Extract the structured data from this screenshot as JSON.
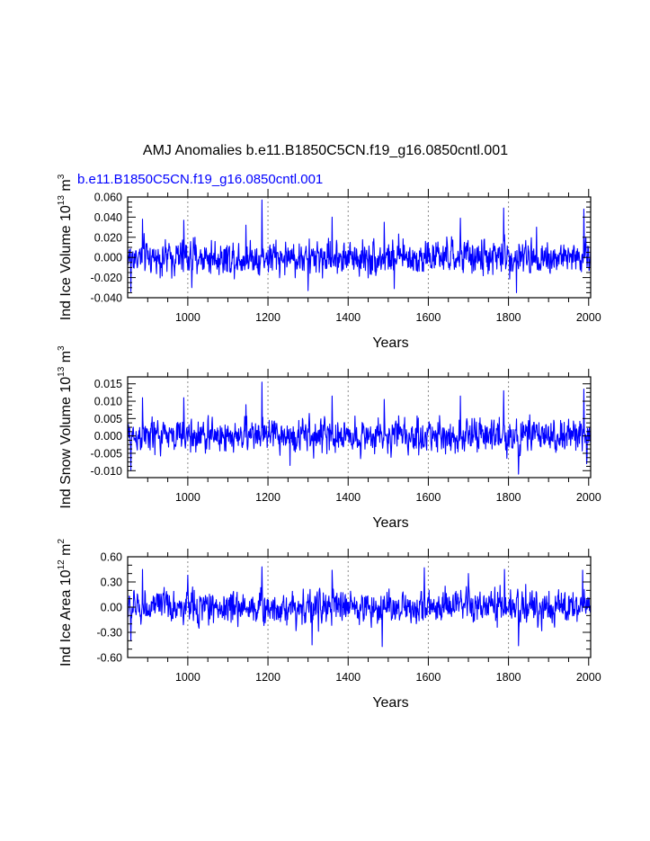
{
  "figure": {
    "title": "AMJ Anomalies b.e11.B1850C5CN.f19_g16.0850cntl.001",
    "case_label": "b.e11.B1850C5CN.f19_g16.0850cntl.001",
    "line_color": "#0000ff",
    "grid_color": "#888888"
  },
  "chart_data": [
    {
      "type": "line",
      "series_name": "b.e11.B1850C5CN.f19_g16.0850cntl.001",
      "xlabel": "Years",
      "ylabel_main": "Ind Ice Volume 10",
      "ylabel_exp": "13",
      "ylabel_unit": " m",
      "ylabel_unit_exp": "3",
      "xlim": [
        850,
        2005
      ],
      "ylim": [
        -0.04,
        0.06
      ],
      "xticks": [
        1000,
        1200,
        1400,
        1600,
        1800,
        2000
      ],
      "xtick_labels": [
        "1000",
        "1200",
        "1400",
        "1600",
        "1800",
        "2000"
      ],
      "yticks": [
        -0.04,
        -0.02,
        0.0,
        0.02,
        0.04,
        0.06
      ],
      "ytick_labels": [
        "-0.040",
        "-0.020",
        "0.000",
        "0.020",
        "0.040",
        "0.060"
      ],
      "grid_x": [
        1000,
        1200,
        1400,
        1600,
        1800
      ],
      "noise_sd": 0.0118,
      "peaks": [
        [
          858,
          -0.034
        ],
        [
          887,
          0.038
        ],
        [
          990,
          0.037
        ],
        [
          1010,
          -0.03
        ],
        [
          1145,
          0.032
        ],
        [
          1185,
          0.057
        ],
        [
          1300,
          -0.033
        ],
        [
          1360,
          0.04
        ],
        [
          1490,
          0.035
        ],
        [
          1515,
          -0.031
        ],
        [
          1680,
          0.039
        ],
        [
          1788,
          0.049
        ],
        [
          1820,
          -0.035
        ],
        [
          1988,
          0.048
        ],
        [
          1870,
          0.03
        ]
      ]
    },
    {
      "type": "line",
      "series_name": "b.e11.B1850C5CN.f19_g16.0850cntl.001",
      "xlabel": "Years",
      "ylabel_main": "Ind Snow Volume 10",
      "ylabel_exp": "13",
      "ylabel_unit": " m",
      "ylabel_unit_exp": "3",
      "xlim": [
        850,
        2005
      ],
      "ylim": [
        -0.012,
        0.017
      ],
      "xticks": [
        1000,
        1200,
        1400,
        1600,
        1800,
        2000
      ],
      "xtick_labels": [
        "1000",
        "1200",
        "1400",
        "1600",
        "1800",
        "2000"
      ],
      "yticks": [
        -0.01,
        -0.005,
        0.0,
        0.005,
        0.01,
        0.015
      ],
      "ytick_labels": [
        "-0.010",
        "-0.005",
        "0.000",
        "0.005",
        "0.010",
        "0.015"
      ],
      "grid_x": [
        1000,
        1200,
        1400,
        1600,
        1800
      ],
      "noise_sd": 0.0033,
      "peaks": [
        [
          858,
          -0.01
        ],
        [
          887,
          0.011
        ],
        [
          990,
          0.011
        ],
        [
          1145,
          0.009
        ],
        [
          1185,
          0.0155
        ],
        [
          1255,
          -0.0085
        ],
        [
          1360,
          0.0115
        ],
        [
          1490,
          0.0105
        ],
        [
          1680,
          0.0115
        ],
        [
          1788,
          0.013
        ],
        [
          1825,
          -0.011
        ],
        [
          1988,
          0.0135
        ],
        [
          1995,
          -0.008
        ]
      ]
    },
    {
      "type": "line",
      "series_name": "b.e11.B1850C5CN.f19_g16.0850cntl.001",
      "xlabel": "Years",
      "ylabel_main": "Ind Ice Area 10",
      "ylabel_exp": "12",
      "ylabel_unit": " m",
      "ylabel_unit_exp": "2",
      "xlim": [
        850,
        2005
      ],
      "ylim": [
        -0.6,
        0.6
      ],
      "xticks": [
        1000,
        1200,
        1400,
        1600,
        1800,
        2000
      ],
      "xtick_labels": [
        "1000",
        "1200",
        "1400",
        "1600",
        "1800",
        "2000"
      ],
      "yticks": [
        -0.6,
        -0.3,
        0.0,
        0.3,
        0.6
      ],
      "ytick_labels": [
        "-0.60",
        "-0.30",
        "0.00",
        "0.30",
        "0.60"
      ],
      "grid_x": [
        1000,
        1200,
        1400,
        1600,
        1800
      ],
      "noise_sd": 0.135,
      "peaks": [
        [
          858,
          -0.4
        ],
        [
          887,
          0.45
        ],
        [
          1000,
          0.38
        ],
        [
          1185,
          0.48
        ],
        [
          1310,
          -0.45
        ],
        [
          1360,
          0.44
        ],
        [
          1485,
          -0.47
        ],
        [
          1590,
          0.47
        ],
        [
          1700,
          0.4
        ],
        [
          1790,
          0.45
        ],
        [
          1825,
          -0.46
        ],
        [
          1985,
          0.44
        ]
      ]
    }
  ]
}
